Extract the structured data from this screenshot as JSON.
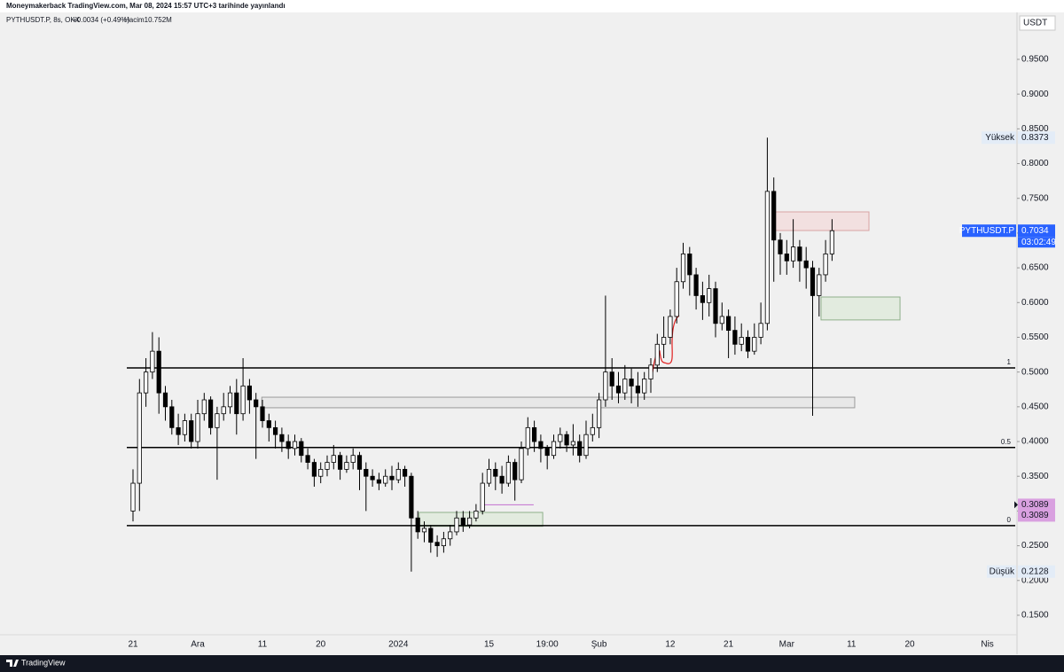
{
  "header": {
    "published": "Moneymakerback TradingView.com, Mar 08, 2024 15:57 UTC+3 tarihinde yayınlandı"
  },
  "footer": {
    "brand": "TradingView"
  },
  "chart_data": {
    "type": "candlestick",
    "symbol": "PYTHUSDT.P, 8s, OKX",
    "change": "+0.0034 (+0.49%)",
    "volume": "Hacim10.752M",
    "currency": "USDT",
    "last_name": "PYTHUSDT.P",
    "countdown": "03:02:49",
    "high_name": "Yüksek",
    "low_name": "Düşük",
    "up_color": "#ffffff",
    "down_color": "#000000",
    "ylim": [
      0.1219,
      1.0163
    ],
    "yticks": [
      {
        "value": 0.15,
        "label": "0.1500"
      },
      {
        "value": 0.2,
        "label": "0.2000"
      },
      {
        "value": 0.25,
        "label": "0.2500"
      },
      {
        "value": 0.3,
        "label": "0.3000"
      },
      {
        "value": 0.35,
        "label": "0.3500"
      },
      {
        "value": 0.4,
        "label": "0.4000"
      },
      {
        "value": 0.45,
        "label": "0.4500"
      },
      {
        "value": 0.5,
        "label": "0.5000"
      },
      {
        "value": 0.55,
        "label": "0.5500"
      },
      {
        "value": 0.6,
        "label": "0.6000"
      },
      {
        "value": 0.65,
        "label": "0.6500"
      },
      {
        "value": 0.7,
        "label": "0.7000"
      },
      {
        "value": 0.75,
        "label": "0.7500"
      },
      {
        "value": 0.8,
        "label": "0.8000"
      },
      {
        "value": 0.85,
        "label": "0.8500"
      },
      {
        "value": 0.9,
        "label": "0.9000"
      },
      {
        "value": 0.95,
        "label": "0.9500"
      }
    ],
    "categories": [
      "21",
      null,
      null,
      null,
      null,
      null,
      null,
      null,
      null,
      null,
      "Ara",
      null,
      null,
      null,
      null,
      null,
      null,
      null,
      null,
      null,
      "11",
      null,
      null,
      null,
      null,
      null,
      null,
      null,
      null,
      "20",
      null,
      null,
      null,
      null,
      null,
      null,
      null,
      null,
      null,
      null,
      null,
      "2024",
      null,
      null,
      null,
      null,
      null,
      null,
      null,
      null,
      null,
      null,
      null,
      null,
      null,
      "15",
      null,
      null,
      null,
      null,
      null,
      null,
      null,
      null,
      "19:00",
      null,
      null,
      null,
      null,
      null,
      null,
      null,
      "Şub",
      null,
      null,
      null,
      null,
      null,
      null,
      null,
      null,
      null,
      null,
      "12",
      null,
      null,
      null,
      null,
      null,
      null,
      null,
      null,
      "21",
      null,
      null,
      null,
      null,
      null,
      null,
      null,
      null,
      "Mar",
      null,
      null,
      null,
      null,
      null,
      null,
      null,
      null,
      null,
      "11",
      null,
      null,
      null,
      null,
      null,
      null,
      null,
      null,
      "20",
      null,
      null,
      null,
      null,
      null,
      null,
      null,
      null,
      null,
      null,
      null,
      "Nis",
      null,
      null,
      null
    ],
    "open": [
      0.3,
      0.34,
      0.47,
      0.5,
      0.53,
      0.47,
      0.45,
      0.42,
      0.41,
      0.43,
      0.4,
      0.44,
      0.46,
      0.42,
      0.44,
      0.45,
      0.47,
      0.44,
      0.48,
      0.46,
      0.45,
      0.43,
      0.42,
      0.41,
      0.4,
      0.39,
      0.4,
      0.38,
      0.37,
      0.35,
      0.36,
      0.37,
      0.38,
      0.36,
      0.37,
      0.38,
      0.36,
      0.35,
      0.345,
      0.34,
      0.35,
      0.345,
      0.36,
      0.35,
      0.29,
      0.27,
      0.275,
      0.255,
      0.25,
      0.26,
      0.27,
      0.29,
      0.28,
      0.29,
      0.3,
      0.34,
      0.36,
      0.35,
      0.34,
      0.37,
      0.345,
      0.39,
      0.42,
      0.4,
      0.39,
      0.38,
      0.4,
      0.41,
      0.395,
      0.4,
      0.38,
      0.41,
      0.42,
      0.46,
      0.5,
      0.48,
      0.47,
      0.49,
      0.48,
      0.47,
      0.49,
      0.51,
      0.54,
      0.55,
      0.58,
      0.63,
      0.67,
      0.64,
      0.61,
      0.6,
      0.62,
      0.57,
      0.58,
      0.56,
      0.54,
      0.55,
      0.53,
      0.55,
      0.57,
      0.76,
      0.69,
      0.67,
      0.66,
      0.68,
      0.66,
      0.65,
      0.61,
      0.64,
      0.67,
      null,
      null,
      null,
      null,
      null,
      null,
      null,
      null,
      null,
      null,
      null,
      null,
      null,
      null,
      null,
      null,
      null,
      null,
      null,
      null,
      null,
      null,
      null,
      null,
      null,
      null,
      null
    ],
    "high": [
      0.36,
      0.49,
      0.52,
      0.5575,
      0.55,
      0.48,
      0.46,
      0.44,
      0.44,
      0.44,
      0.46,
      0.47,
      0.465,
      0.45,
      0.47,
      0.48,
      0.49,
      0.52,
      0.49,
      0.47,
      0.46,
      0.44,
      0.43,
      0.42,
      0.41,
      0.41,
      0.405,
      0.39,
      0.375,
      0.37,
      0.38,
      0.395,
      0.385,
      0.38,
      0.39,
      0.385,
      0.37,
      0.36,
      0.355,
      0.36,
      0.365,
      0.37,
      0.365,
      0.355,
      0.3,
      0.285,
      0.28,
      0.265,
      0.27,
      0.28,
      0.3,
      0.3,
      0.3,
      0.31,
      0.355,
      0.375,
      0.37,
      0.365,
      0.38,
      0.375,
      0.4,
      0.435,
      0.43,
      0.41,
      0.395,
      0.41,
      0.42,
      0.415,
      0.425,
      0.41,
      0.43,
      0.44,
      0.47,
      0.61,
      0.52,
      0.5,
      0.51,
      0.505,
      0.5,
      0.5,
      0.52,
      0.555,
      0.58,
      0.59,
      0.65,
      0.686,
      0.68,
      0.65,
      0.63,
      0.64,
      0.63,
      0.6,
      0.59,
      0.58,
      0.57,
      0.56,
      0.57,
      0.6,
      0.8373,
      0.78,
      0.7,
      0.69,
      0.72,
      0.69,
      0.68,
      0.66,
      0.65,
      0.69,
      0.72,
      null,
      null,
      null,
      null,
      null,
      null,
      null,
      null,
      null,
      null,
      null,
      null,
      null,
      null,
      null,
      null,
      null,
      null,
      null,
      null,
      null,
      null,
      null,
      null,
      null,
      null,
      null
    ],
    "low": [
      0.285,
      0.3,
      0.45,
      0.49,
      0.44,
      0.43,
      0.41,
      0.395,
      0.4,
      0.39,
      0.39,
      0.43,
      0.41,
      0.345,
      0.43,
      0.44,
      0.41,
      0.43,
      0.44,
      0.375,
      0.42,
      0.4,
      0.39,
      0.385,
      0.375,
      0.38,
      0.37,
      0.36,
      0.335,
      0.34,
      0.35,
      0.36,
      0.345,
      0.355,
      0.36,
      0.33,
      0.3,
      0.335,
      0.33,
      0.335,
      0.33,
      0.34,
      0.335,
      0.2128,
      0.26,
      0.255,
      0.24,
      0.234,
      0.24,
      0.25,
      0.265,
      0.27,
      0.275,
      0.285,
      0.295,
      0.335,
      0.33,
      0.325,
      0.335,
      0.315,
      0.34,
      0.38,
      0.385,
      0.37,
      0.36,
      0.375,
      0.39,
      0.385,
      0.38,
      0.37,
      0.375,
      0.4,
      0.405,
      0.45,
      0.46,
      0.455,
      0.46,
      0.455,
      0.45,
      0.46,
      0.47,
      0.5,
      0.52,
      0.54,
      0.57,
      0.62,
      0.61,
      0.59,
      0.575,
      0.58,
      0.55,
      0.56,
      0.52,
      0.525,
      0.53,
      0.52,
      0.525,
      0.54,
      0.56,
      0.63,
      0.64,
      0.64,
      0.65,
      0.63,
      0.62,
      0.437,
      0.58,
      0.63,
      0.66,
      null,
      null,
      null,
      null,
      null,
      null,
      null,
      null,
      null,
      null,
      null,
      null,
      null,
      null,
      null,
      null,
      null,
      null,
      null,
      null,
      null,
      null,
      null,
      null,
      null,
      null,
      null
    ],
    "close": [
      0.34,
      0.47,
      0.5,
      0.53,
      0.47,
      0.45,
      0.42,
      0.41,
      0.43,
      0.4,
      0.44,
      0.46,
      0.42,
      0.44,
      0.45,
      0.47,
      0.44,
      0.48,
      0.46,
      0.45,
      0.43,
      0.42,
      0.41,
      0.4,
      0.39,
      0.4,
      0.38,
      0.37,
      0.35,
      0.36,
      0.37,
      0.38,
      0.36,
      0.37,
      0.38,
      0.36,
      0.35,
      0.345,
      0.34,
      0.35,
      0.345,
      0.36,
      0.35,
      0.29,
      0.27,
      0.275,
      0.255,
      0.25,
      0.26,
      0.27,
      0.29,
      0.28,
      0.29,
      0.3,
      0.34,
      0.36,
      0.35,
      0.34,
      0.37,
      0.345,
      0.39,
      0.42,
      0.4,
      0.39,
      0.38,
      0.4,
      0.41,
      0.395,
      0.4,
      0.38,
      0.41,
      0.42,
      0.46,
      0.5,
      0.48,
      0.47,
      0.49,
      0.48,
      0.47,
      0.49,
      0.51,
      0.54,
      0.55,
      0.58,
      0.63,
      0.67,
      0.64,
      0.61,
      0.6,
      0.62,
      0.57,
      0.58,
      0.56,
      0.54,
      0.55,
      0.53,
      0.55,
      0.57,
      0.76,
      0.69,
      0.67,
      0.66,
      0.68,
      0.66,
      0.65,
      0.61,
      0.64,
      0.67,
      0.7034,
      null,
      null,
      null,
      null,
      null,
      null,
      null,
      null,
      null,
      null,
      null,
      null,
      null,
      null,
      null,
      null,
      null,
      null,
      null,
      null,
      null,
      null,
      null,
      null,
      null,
      null,
      null
    ],
    "levels": [
      {
        "label": "1",
        "value": 0.506
      },
      {
        "label": "0.5",
        "value": 0.3915
      },
      {
        "label": "0",
        "value": 0.279
      }
    ],
    "zones": [
      {
        "top": 0.7305,
        "bottom": 0.7037,
        "start": 98.9,
        "end": 113.7,
        "color": "#f3dcdc",
        "stroke": "#d9a3a3"
      },
      {
        "top": 0.608,
        "bottom": 0.575,
        "start": 106.3,
        "end": 118.5,
        "color": "#dfeadb",
        "stroke": "#8fb08a"
      },
      {
        "top": 0.4638,
        "bottom": 0.4486,
        "start": 19.9,
        "end": 111.5,
        "color": "#e6e6e6",
        "stroke": "#9a9a9a"
      },
      {
        "top": 0.298,
        "bottom": 0.278,
        "start": 44.2,
        "end": 63.3,
        "color": "#dfeadb",
        "stroke": "#8fb08a"
      }
    ],
    "marker_line": {
      "value": 0.3089,
      "start": 53.8,
      "end": 61.9,
      "color": "#c77dd4"
    }
  }
}
